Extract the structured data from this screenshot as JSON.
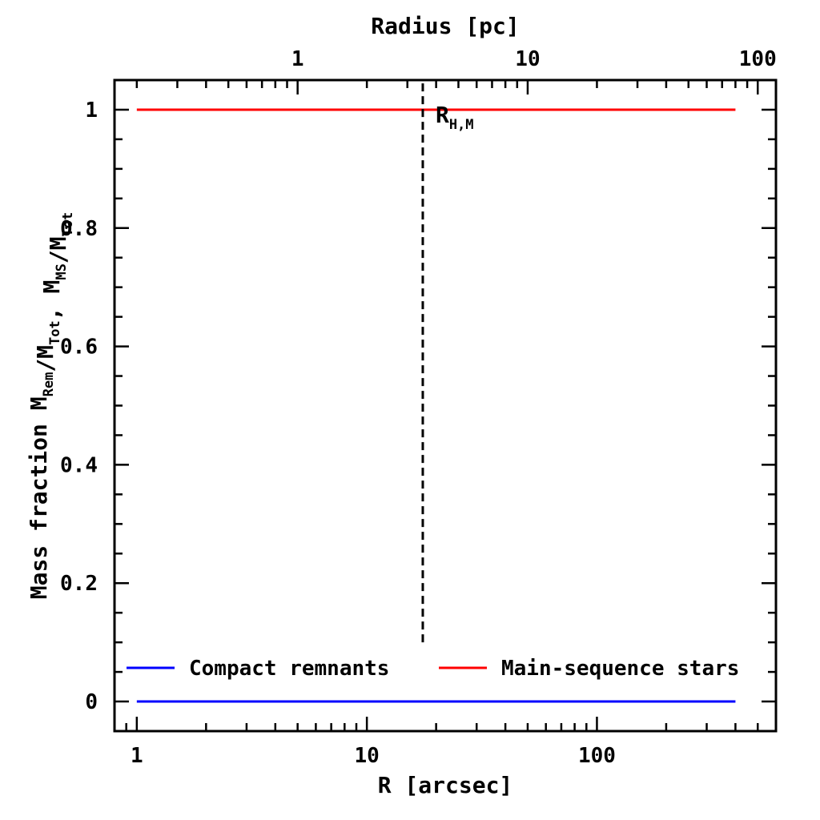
{
  "chart_data": {
    "type": "line",
    "title": "",
    "xlabel": "R [arcsec]",
    "ylabel": {
      "prefix": "Mass fraction",
      "parts": [
        {
          "t": "M",
          "s": ""
        },
        {
          "t": "",
          "s": "Rem"
        },
        {
          "t": "/M",
          "s": ""
        },
        {
          "t": "",
          "s": "Tot"
        },
        {
          "t": ",  M",
          "s": ""
        },
        {
          "t": "",
          "s": "MS"
        },
        {
          "t": "/M",
          "s": ""
        },
        {
          "t": "",
          "s": "Tot"
        }
      ]
    },
    "x2label": "Radius [pc]",
    "x_scale": "log",
    "xlim": [
      0.8,
      600
    ],
    "ylim": [
      -0.05,
      1.05
    ],
    "x2lim": [
      0.16,
      120
    ],
    "x_ticks": [
      1,
      10,
      100
    ],
    "x_tick_labels": [
      "1",
      "10",
      "100"
    ],
    "x2_ticks": [
      1,
      10,
      100
    ],
    "x2_tick_labels": [
      "1",
      "10",
      "100"
    ],
    "y_ticks": [
      0,
      0.2,
      0.4,
      0.6,
      0.8,
      1
    ],
    "y_tick_labels": [
      "0",
      "0.2",
      "0.4",
      "0.6",
      "0.8",
      "1"
    ],
    "series": [
      {
        "name": "Main-sequence stars",
        "color": "#ff0000",
        "x": [
          1,
          400
        ],
        "y": [
          1,
          1
        ]
      },
      {
        "name": "Compact remnants",
        "color": "#0000ff",
        "x": [
          1,
          400
        ],
        "y": [
          0,
          0
        ]
      }
    ],
    "annotations": [
      {
        "kind": "vline",
        "style": "dashed",
        "x": 17.5,
        "y_range": [
          0.1,
          1.05
        ],
        "label": {
          "main": "R",
          "sub": "H,M"
        }
      }
    ],
    "legend": {
      "placement": "bottom",
      "order": [
        "Compact remnants",
        "Main-sequence stars"
      ]
    }
  }
}
